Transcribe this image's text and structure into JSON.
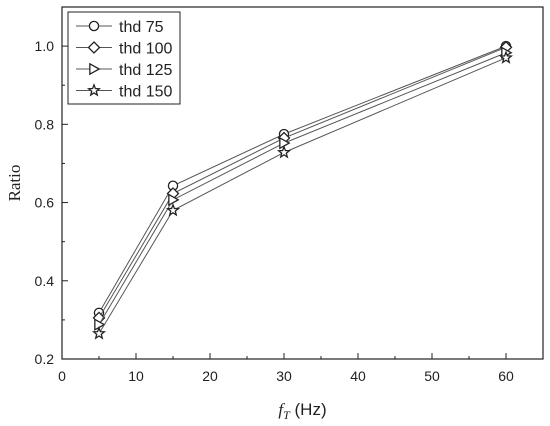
{
  "chart_data": {
    "type": "line",
    "xlabel_main": "f",
    "xlabel_sub": "T",
    "xlabel_unit": " (Hz)",
    "ylabel": "Ratio",
    "xlim": [
      0,
      65
    ],
    "ylim": [
      0.2,
      1.1
    ],
    "xticks": [
      0,
      10,
      20,
      30,
      40,
      50,
      60
    ],
    "yticks": [
      0.2,
      0.4,
      0.6,
      0.8,
      1.0
    ],
    "grid": false,
    "legend_position": "top-left",
    "x": [
      5,
      15,
      30,
      60
    ],
    "series": [
      {
        "name": "thd 75",
        "marker": "circle",
        "values": [
          0.318,
          0.643,
          0.775,
          1.0
        ]
      },
      {
        "name": "thd 100",
        "marker": "diamond",
        "values": [
          0.305,
          0.623,
          0.765,
          0.997
        ]
      },
      {
        "name": "thd 125",
        "marker": "triangle-right",
        "values": [
          0.288,
          0.607,
          0.752,
          0.983
        ]
      },
      {
        "name": "thd 150",
        "marker": "star",
        "values": [
          0.265,
          0.58,
          0.728,
          0.97
        ]
      }
    ],
    "line_color": "#555555",
    "marker_color": "#222222"
  }
}
